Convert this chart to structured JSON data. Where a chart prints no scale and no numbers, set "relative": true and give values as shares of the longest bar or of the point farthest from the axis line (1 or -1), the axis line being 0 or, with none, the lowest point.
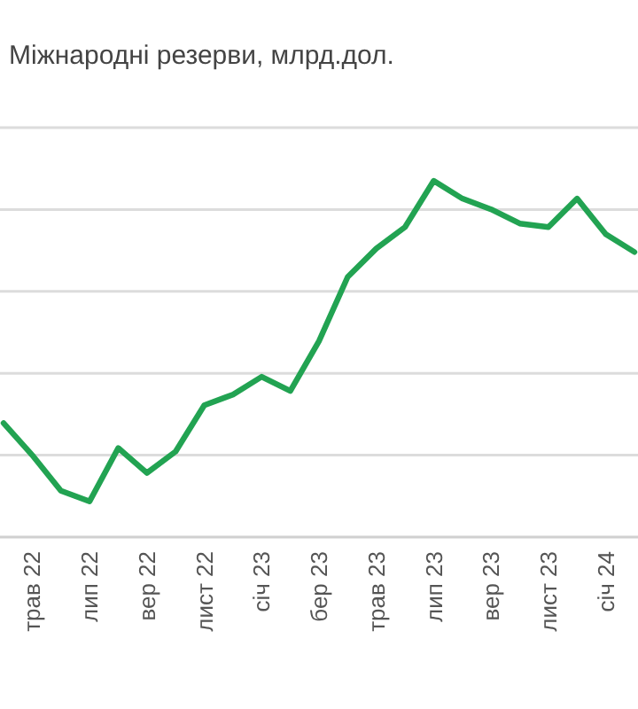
{
  "chart_data": {
    "type": "line",
    "title": "Міжнародні резерви, млрд.дол.",
    "relative": true,
    "grid": "y",
    "marker": "none",
    "line_style": "solid",
    "categories": [
      null,
      "трав 22",
      null,
      "лип 22",
      null,
      "вер 22",
      null,
      "лист 22",
      null,
      "січ 23",
      null,
      "бер 23",
      null,
      "трав 23",
      null,
      "лип 23",
      null,
      "вер 23",
      null,
      "лист 23",
      null,
      "січ 24",
      null
    ],
    "series": [
      {
        "color": "#22a352",
        "values": [
          0.32,
          0.23,
          0.13,
          0.1,
          0.25,
          0.18,
          0.24,
          0.37,
          0.4,
          0.45,
          0.41,
          0.55,
          0.73,
          0.81,
          0.87,
          1,
          0.95,
          0.92,
          0.88,
          0.87,
          0.95,
          0.85,
          0.8
        ]
      }
    ]
  }
}
